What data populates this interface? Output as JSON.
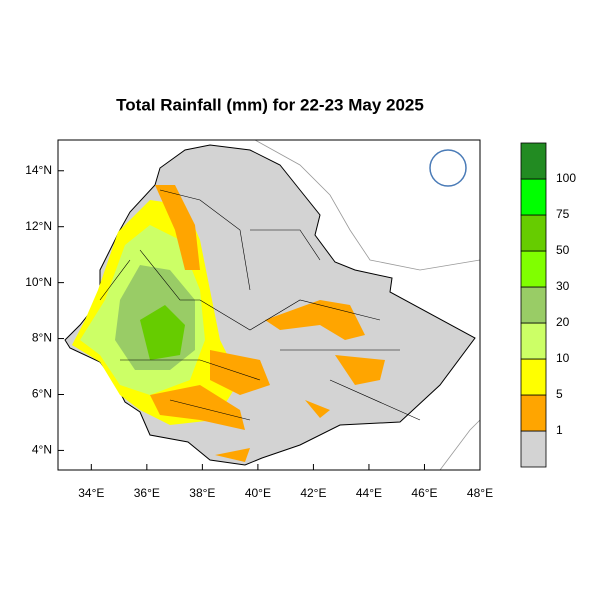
{
  "title": "Total Rainfall (mm) for 22-23 May 2025",
  "xlim": [
    32.8,
    48
  ],
  "ylim": [
    3.3,
    15.1
  ],
  "xticks": [
    {
      "value": 34,
      "label": "34°E"
    },
    {
      "value": 36,
      "label": "36°E"
    },
    {
      "value": 38,
      "label": "38°E"
    },
    {
      "value": 40,
      "label": "40°E"
    },
    {
      "value": 42,
      "label": "42°E"
    },
    {
      "value": 44,
      "label": "44°E"
    },
    {
      "value": 46,
      "label": "46°E"
    },
    {
      "value": 48,
      "label": "48°E"
    }
  ],
  "yticks": [
    {
      "value": 4,
      "label": "4°N"
    },
    {
      "value": 6,
      "label": "6°N"
    },
    {
      "value": 8,
      "label": "8°N"
    },
    {
      "value": 10,
      "label": "10°N"
    },
    {
      "value": 12,
      "label": "12°N"
    },
    {
      "value": 14,
      "label": "14°N"
    }
  ],
  "colorbar": {
    "levels": [
      1,
      5,
      10,
      20,
      30,
      50,
      75,
      100
    ],
    "colors": [
      "#d3d3d3",
      "#ffa500",
      "#ffff00",
      "#ccff66",
      "#99cc66",
      "#80ff00",
      "#66cc00",
      "#00ff00",
      "#228b22"
    ]
  }
}
